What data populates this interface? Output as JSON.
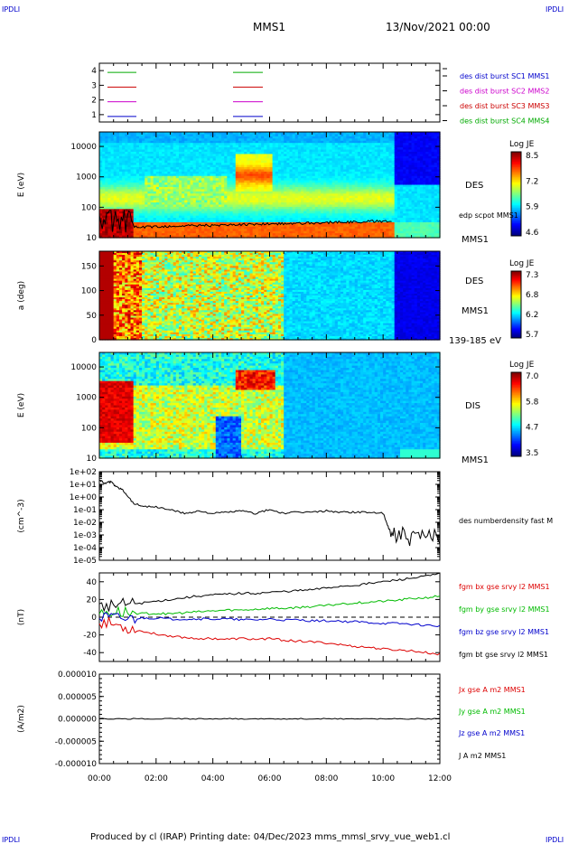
{
  "corner": {
    "tl": "IPDLI",
    "tr": "IPDLI",
    "bl": "IPDLI",
    "br": "IPDLI"
  },
  "header": {
    "spacecraft": "MMS1",
    "datetime": "13/Nov/2021 00:00"
  },
  "footer": {
    "text": "Produced by cl (IRAP)    Printing date: 04/Dec/2023    mms_mmsl_srvy_vue_web1.cl"
  },
  "colors": {
    "c1": "#0000cc",
    "c2": "#cc00cc",
    "c3": "#cc0000",
    "c4": "#00aa00",
    "bx": "#dd0000",
    "by": "#00bb00",
    "bz": "#0000cc",
    "bt": "#000000"
  },
  "chart_data": [
    {
      "type": "line",
      "panel": "availability",
      "yticks": [
        "1",
        "2",
        "3",
        "4"
      ],
      "ylim": [
        0.5,
        4.5
      ],
      "legend": [
        "des dist burst SC1 MMS1",
        "des dist burst SC2 MMS2",
        "des dist burst SC3 MMS3",
        "des dist burst SC4 MMS4"
      ],
      "series": [
        {
          "name": "des dist burst SC1 MMS1",
          "y": 1
        },
        {
          "name": "des dist burst SC2 MMS2",
          "y": 2
        },
        {
          "name": "des dist burst SC3 MMS3",
          "y": 3
        },
        {
          "name": "des dist burst SC4 MMS4",
          "y": 4
        }
      ]
    },
    {
      "type": "heatmap",
      "panel": "des-energy",
      "ylabel": "E (eV)",
      "yticks": [
        "10",
        "100",
        "1000",
        "10000"
      ],
      "ylim": [
        10,
        30000
      ],
      "scale": "log",
      "right_labels": [
        "DES",
        "edp scpot MMS1",
        "MMS1"
      ],
      "colorbar": {
        "title": "Log JE",
        "ticks": [
          "8.5",
          "7.2",
          "5.9",
          "4.6"
        ]
      }
    },
    {
      "type": "heatmap",
      "panel": "des-pitch",
      "ylabel": "a (deg)",
      "yticks": [
        "0",
        "50",
        "100",
        "150"
      ],
      "ylim": [
        0,
        180
      ],
      "right_labels": [
        "DES",
        "MMS1",
        "139-185 eV"
      ],
      "colorbar": {
        "title": "Log JE",
        "ticks": [
          "7.3",
          "6.8",
          "6.2",
          "5.7"
        ]
      }
    },
    {
      "type": "heatmap",
      "panel": "dis-energy",
      "ylabel": "E (eV)",
      "yticks": [
        "10",
        "100",
        "1000",
        "10000"
      ],
      "ylim": [
        10,
        30000
      ],
      "scale": "log",
      "right_labels": [
        "DIS",
        "MMS1"
      ],
      "colorbar": {
        "title": "Log JE",
        "ticks": [
          "7.0",
          "5.8",
          "4.7",
          "3.5"
        ]
      }
    },
    {
      "type": "line",
      "panel": "density",
      "ylabel": "(cm^-3)",
      "scale": "log",
      "yticks": [
        "1e-05",
        "1e-04",
        "1e-03",
        "1e-02",
        "1e-01",
        "1e+00",
        "1e+01",
        "1e+02"
      ],
      "ylim": [
        -5,
        2
      ],
      "legend": [
        "des numberdensity fast M"
      ],
      "x": [
        0.0,
        0.2,
        0.4,
        0.6,
        0.8,
        1.0,
        1.2,
        1.5,
        2.0,
        2.5,
        3.0,
        3.5,
        4.0,
        4.5,
        5.0,
        5.5,
        6.0,
        6.5,
        7.0,
        7.5,
        8.0,
        8.5,
        9.0,
        9.5,
        10.0,
        10.2,
        10.5,
        11.0,
        11.5,
        12.0
      ],
      "series": [
        {
          "name": "des numberdensity fast M",
          "values": [
            1.3,
            1.1,
            1.2,
            0.8,
            0.6,
            0.1,
            -0.5,
            -0.7,
            -0.8,
            -1.0,
            -1.3,
            -1.1,
            -1.3,
            -1.2,
            -1.1,
            -1.3,
            -1.0,
            -1.3,
            -1.2,
            -1.2,
            -1.1,
            -1.2,
            -1.2,
            -1.2,
            -1.3,
            -2.5,
            -3.0,
            -3.2,
            -3.3,
            -3.0
          ]
        }
      ]
    },
    {
      "type": "line",
      "panel": "magnetic-field",
      "ylabel": "(nT)",
      "yticks": [
        "-40",
        "-20",
        "0",
        "20",
        "40"
      ],
      "ylim": [
        -50,
        50
      ],
      "x": [
        0.0,
        0.5,
        1.0,
        1.5,
        2.0,
        2.5,
        3.0,
        3.5,
        4.0,
        4.5,
        5.0,
        5.5,
        6.0,
        6.5,
        7.0,
        7.5,
        8.0,
        8.5,
        9.0,
        9.5,
        10.0,
        10.5,
        11.0,
        11.5,
        12.0
      ],
      "series": [
        {
          "name": "fgm bx gse srvy l2 MMS1",
          "values": [
            -5,
            -8,
            -12,
            -16,
            -19,
            -21,
            -23,
            -24,
            -24,
            -25,
            -24,
            -25,
            -24,
            -26,
            -27,
            -28,
            -29,
            -31,
            -33,
            -34,
            -36,
            -37,
            -38,
            -40,
            -42
          ]
        },
        {
          "name": "fgm by gse srvy l2 MMS1",
          "values": [
            5,
            6,
            5,
            4,
            4,
            4,
            5,
            6,
            7,
            8,
            8,
            9,
            10,
            10,
            11,
            12,
            13,
            15,
            16,
            17,
            18,
            19,
            21,
            22,
            24
          ]
        },
        {
          "name": "fgm bz gse srvy l2 MMS1",
          "values": [
            0,
            -1,
            -2,
            -1,
            -1,
            -2,
            -2,
            -2,
            -2,
            -2,
            -3,
            -3,
            -2,
            -3,
            -3,
            -4,
            -4,
            -5,
            -5,
            -6,
            -7,
            -7,
            -8,
            -9,
            -10
          ]
        },
        {
          "name": "fgm bt gse srvy l2 MMS1",
          "values": [
            12,
            14,
            15,
            16,
            18,
            20,
            22,
            24,
            25,
            26,
            27,
            27,
            28,
            29,
            30,
            31,
            33,
            35,
            36,
            38,
            40,
            42,
            44,
            46,
            49
          ]
        }
      ]
    },
    {
      "type": "line",
      "panel": "current",
      "ylabel": "(A/m2)",
      "yticks": [
        "-0.000010",
        "-0.000005",
        "0.000000",
        "0.000005",
        "0.000010"
      ],
      "ylim": [
        -1e-05,
        1e-05
      ],
      "legend": [
        "Jx gse A m2 MMS1",
        "Jy gse A m2 MMS1",
        "Jz gse A m2 MMS1",
        "J A m2 MMS1"
      ],
      "x": [
        0,
        12
      ],
      "series": [
        {
          "name": "J A m2 MMS1",
          "values": [
            0,
            0
          ]
        }
      ]
    }
  ],
  "xaxis": {
    "ticks": [
      "00:00",
      "02:00",
      "04:00",
      "06:00",
      "08:00",
      "10:00",
      "12:00"
    ],
    "range": [
      0,
      12
    ]
  }
}
